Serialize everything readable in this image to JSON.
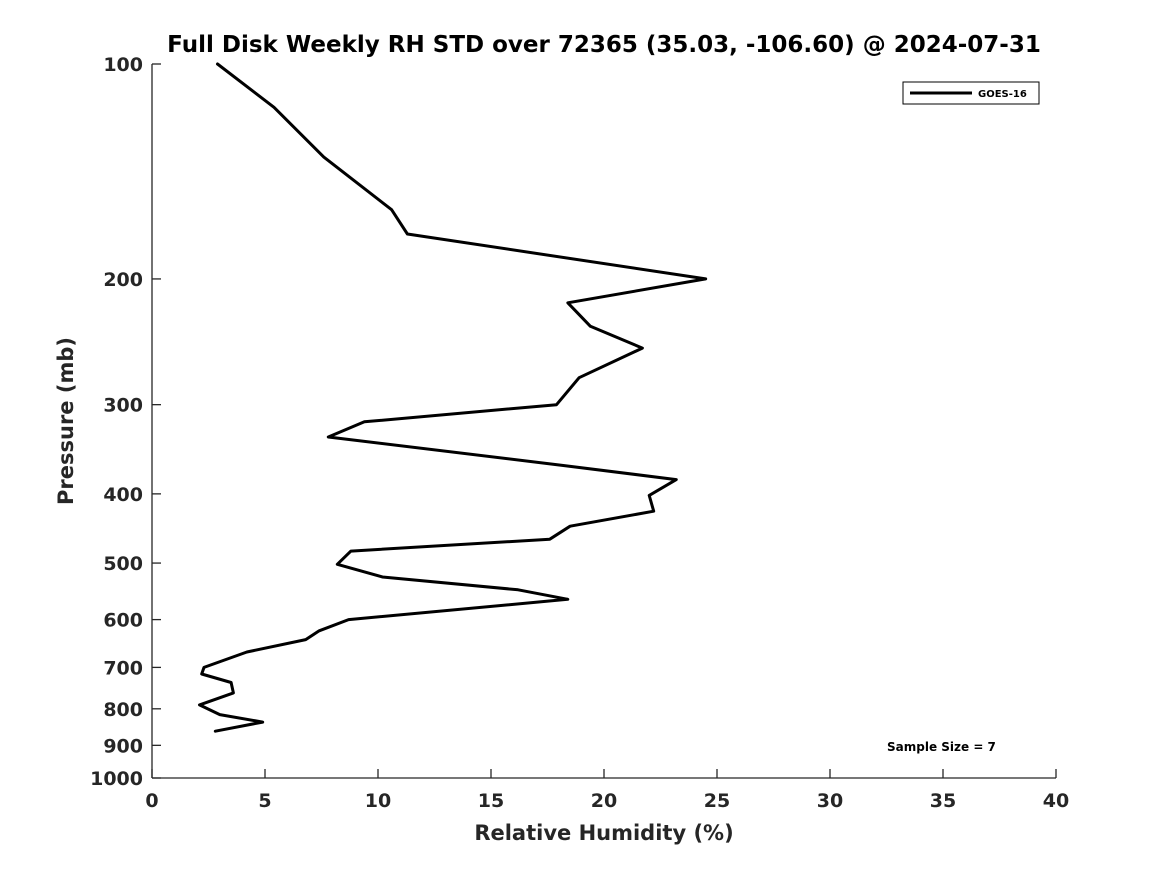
{
  "chart_data": {
    "type": "line",
    "title": "Full Disk Weekly RH STD over 72365 (35.03, -106.60) @ 2024-07-31",
    "xlabel": "Relative Humidity (%)",
    "ylabel": "Pressure (mb)",
    "xlim": [
      0,
      40
    ],
    "ylim": [
      100,
      1000
    ],
    "y_scale": "log",
    "y_reversed": true,
    "grid": false,
    "legend_position": "top-right",
    "x_ticks": [
      "0",
      "5",
      "10",
      "15",
      "20",
      "25",
      "30",
      "35",
      "40"
    ],
    "y_ticks": [
      "100",
      "200",
      "300",
      "400",
      "500",
      "600",
      "700",
      "800",
      "900",
      "1000"
    ],
    "annotation": "Sample Size = 7",
    "series": [
      {
        "name": "GOES-16",
        "color": "#000000",
        "x": [
          2.9,
          5.4,
          7.6,
          10.6,
          11.3,
          24.5,
          18.4,
          19.4,
          21.7,
          18.9,
          17.9,
          9.4,
          7.8,
          18.2,
          23.2,
          22.0,
          22.2,
          18.5,
          17.6,
          8.8,
          8.2,
          10.2,
          16.2,
          18.4,
          8.7,
          7.4,
          6.8,
          4.2,
          2.3,
          2.2,
          3.5,
          3.6,
          2.1,
          3.0,
          4.9,
          2.8
        ],
        "y": [
          100,
          115,
          135,
          160,
          173,
          200,
          216,
          233,
          250,
          275,
          300,
          317,
          333,
          365,
          382,
          402,
          423,
          444,
          463,
          481,
          502,
          523,
          545,
          562,
          600,
          622,
          640,
          666,
          700,
          715,
          735,
          760,
          790,
          815,
          835,
          860
        ]
      }
    ]
  }
}
